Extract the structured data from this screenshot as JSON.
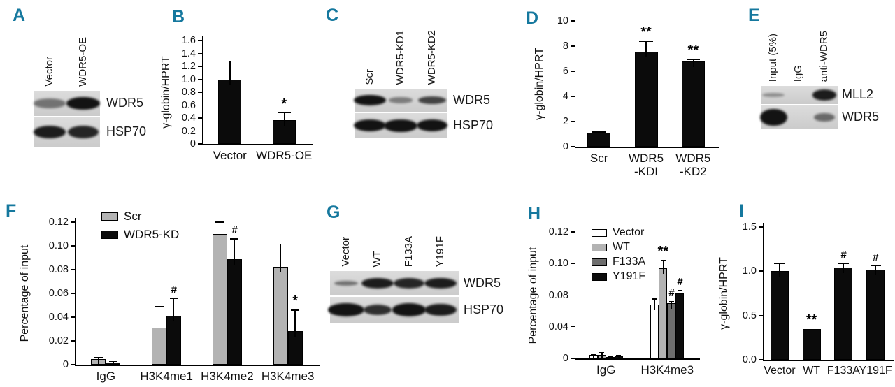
{
  "meta": {
    "panel_letter_color": "#15789e",
    "bar_black": "#0b0b0b",
    "bar_gray": "#b3b3b3",
    "bar_dark_gray": "#6e6e6e",
    "bar_white": "#ffffff"
  },
  "panels": {
    "A": {
      "letter": "A"
    },
    "B": {
      "letter": "B"
    },
    "C": {
      "letter": "C"
    },
    "D": {
      "letter": "D"
    },
    "E": {
      "letter": "E"
    },
    "F": {
      "letter": "F"
    },
    "G": {
      "letter": "G"
    },
    "H": {
      "letter": "H"
    },
    "I": {
      "letter": "I"
    }
  },
  "blots": {
    "A": {
      "lanes": [
        "Vector",
        "WDR5-OE"
      ],
      "rows": [
        {
          "label": "WDR5",
          "bands": [
            {
              "v": 0.5,
              "w": 1.2,
              "h": 0.85
            },
            {
              "v": 1,
              "w": 1.25,
              "h": 1.1
            }
          ]
        },
        {
          "label": "HSP70",
          "bands": [
            {
              "v": 0.95,
              "w": 1.2,
              "h": 0.95
            },
            {
              "v": 0.9,
              "w": 1.15,
              "h": 0.95
            }
          ]
        }
      ]
    },
    "C": {
      "lanes": [
        "Scr",
        "WDR5-KD1",
        "WDR5-KD2"
      ],
      "rows": [
        {
          "label": "WDR5",
          "bands": [
            {
              "v": 1,
              "w": 1.15,
              "h": 1
            },
            {
              "v": 0.45,
              "w": 0.85,
              "h": 0.55
            },
            {
              "v": 0.75,
              "w": 1,
              "h": 0.75
            }
          ]
        },
        {
          "label": "HSP70",
          "bands": [
            {
              "v": 1,
              "w": 1.15,
              "h": 1.05
            },
            {
              "v": 1,
              "w": 1.2,
              "h": 1.15
            },
            {
              "v": 1,
              "w": 1.1,
              "h": 1.05
            }
          ]
        }
      ]
    },
    "E": {
      "lanes": [
        "Input (5%)",
        "IgG",
        "anti-WDR5"
      ],
      "rows": [
        {
          "label": "MLL2",
          "bands": [
            {
              "v": 0.35,
              "w": 1.05,
              "h": 0.55
            },
            {
              "v": 0,
              "w": 1,
              "h": 1
            },
            {
              "v": 0.95,
              "w": 1.15,
              "h": 1.3
            }
          ]
        },
        {
          "label": "WDR5",
          "bands": [
            {
              "v": 1,
              "w": 1.3,
              "h": 1.6
            },
            {
              "v": 0,
              "w": 1,
              "h": 1
            },
            {
              "v": 0.55,
              "w": 1,
              "h": 0.8
            }
          ]
        }
      ]
    },
    "G": {
      "lanes": [
        "Vector",
        "WT",
        "F133A",
        "Y191F"
      ],
      "rows": [
        {
          "label": "WDR5",
          "bands": [
            {
              "v": 0.5,
              "w": 0.8,
              "h": 0.45
            },
            {
              "v": 0.95,
              "w": 1.1,
              "h": 0.95
            },
            {
              "v": 0.9,
              "w": 1.05,
              "h": 0.95
            },
            {
              "v": 0.95,
              "w": 1.1,
              "h": 1
            }
          ]
        },
        {
          "label": "HSP70",
          "bands": [
            {
              "v": 1,
              "w": 1.25,
              "h": 1.15
            },
            {
              "v": 0.85,
              "w": 0.95,
              "h": 0.9
            },
            {
              "v": 1,
              "w": 1.15,
              "h": 1.1
            },
            {
              "v": 0.95,
              "w": 1.1,
              "h": 1.05
            }
          ]
        }
      ]
    }
  },
  "chart_data": [
    {
      "panel": "B",
      "type": "bar",
      "title": "",
      "xlabel": "",
      "ylabel": "γ-globin/HPRT",
      "ytick_labels": [
        "0",
        "0.2",
        "0.4",
        "0.6",
        "0.8",
        "1.0",
        "1.2",
        "1.4",
        "1.6"
      ],
      "ytick_values": [
        0,
        0.2,
        0.4,
        0.6,
        0.8,
        1.0,
        1.2,
        1.4,
        1.6
      ],
      "categories": [
        "Vector",
        "WDR5-OE"
      ],
      "series": [
        {
          "name": "",
          "color": "#0b0b0b",
          "values": [
            0.99,
            0.37
          ],
          "errors": [
            0.29,
            0.11
          ],
          "sig": [
            "",
            "*"
          ]
        }
      ],
      "legend_visible": false
    },
    {
      "panel": "D",
      "type": "bar",
      "title": "",
      "xlabel": "",
      "ylabel": "γ-globin/HPRT",
      "ytick_labels": [
        "0",
        "2",
        "4",
        "6",
        "8",
        "10"
      ],
      "ytick_values": [
        0,
        2,
        4,
        6,
        8,
        10
      ],
      "categories": [
        "Scr",
        "WDR5\n-KDI",
        "WDR5\n-KD2"
      ],
      "series": [
        {
          "name": "",
          "color": "#0b0b0b",
          "values": [
            1.1,
            7.55,
            6.8
          ],
          "errors": [
            0.08,
            0.85,
            0.12
          ],
          "sig": [
            "",
            "**",
            "**"
          ]
        }
      ],
      "legend_visible": false
    },
    {
      "panel": "F",
      "type": "bar",
      "title": "",
      "xlabel": "",
      "ylabel": "Percentage of input",
      "ytick_labels": [
        "0",
        "0.02",
        "0.04",
        "0.06",
        "0.08",
        "0.10",
        "0.12"
      ],
      "ytick_values": [
        0,
        0.02,
        0.04,
        0.06,
        0.08,
        0.1,
        0.12
      ],
      "categories": [
        "IgG",
        "H3K4me1",
        "H3K4me2",
        "H3K4me3"
      ],
      "series": [
        {
          "name": "Scr",
          "color": "#b3b3b3",
          "values": [
            0.0045,
            0.031,
            0.11,
            0.0825
          ],
          "errors": [
            0.0015,
            0.018,
            0.01,
            0.019
          ],
          "sig": [
            "",
            "",
            "",
            ""
          ]
        },
        {
          "name": "WDR5-KD",
          "color": "#0b0b0b",
          "values": [
            0.0015,
            0.041,
            0.089,
            0.028
          ],
          "errors": [
            0.0012,
            0.015,
            0.017,
            0.018
          ],
          "sig": [
            "",
            "#",
            "#",
            "*"
          ]
        }
      ],
      "legend_visible": true,
      "legend_position": "top-left"
    },
    {
      "panel": "H",
      "type": "bar",
      "title": "",
      "xlabel": "",
      "ylabel": "Percentage of input",
      "ytick_labels": [
        "0",
        "0.04",
        "0.08",
        "0.10",
        "0.12"
      ],
      "ytick_values": [
        0,
        0.04,
        0.08,
        0.1,
        0.12
      ],
      "categories": [
        "IgG",
        "H3K4me3"
      ],
      "series": [
        {
          "name": "Vector",
          "color": "#ffffff",
          "values": [
            0.004,
            0.068
          ],
          "errors": [
            0.0008,
            0.007
          ],
          "sig": [
            "",
            ""
          ]
        },
        {
          "name": "WT",
          "color": "#b3b3b3",
          "values": [
            0.004,
            0.097
          ],
          "errors": [
            0.003,
            0.005
          ],
          "sig": [
            "",
            "**"
          ]
        },
        {
          "name": "F133A",
          "color": "#6e6e6e",
          "values": [
            0.0015,
            0.07
          ],
          "errors": [
            0.0005,
            0.0015
          ],
          "sig": [
            "",
            "#"
          ]
        },
        {
          "name": "Y191F",
          "color": "#0b0b0b",
          "values": [
            0.003,
            0.081
          ],
          "errors": [
            0.0008,
            0.002
          ],
          "sig": [
            "",
            "#"
          ]
        }
      ],
      "legend_visible": true,
      "legend_position": "top-left"
    },
    {
      "panel": "I",
      "type": "bar",
      "title": "",
      "xlabel": "",
      "ylabel": "γ-globin/HPRT",
      "ytick_labels": [
        "0.0",
        "0.5",
        "1.0",
        "1.5"
      ],
      "ytick_values": [
        0,
        0.5,
        1.0,
        1.5
      ],
      "categories": [
        "Vector",
        "WT",
        "F133A",
        "Y191F"
      ],
      "series": [
        {
          "name": "",
          "color": "#0b0b0b",
          "values": [
            1.0,
            0.35,
            1.04,
            1.02
          ],
          "errors": [
            0.09,
            0,
            0.05,
            0.04
          ],
          "sig": [
            "",
            "**",
            "#",
            "#"
          ]
        }
      ],
      "legend_visible": false
    }
  ]
}
